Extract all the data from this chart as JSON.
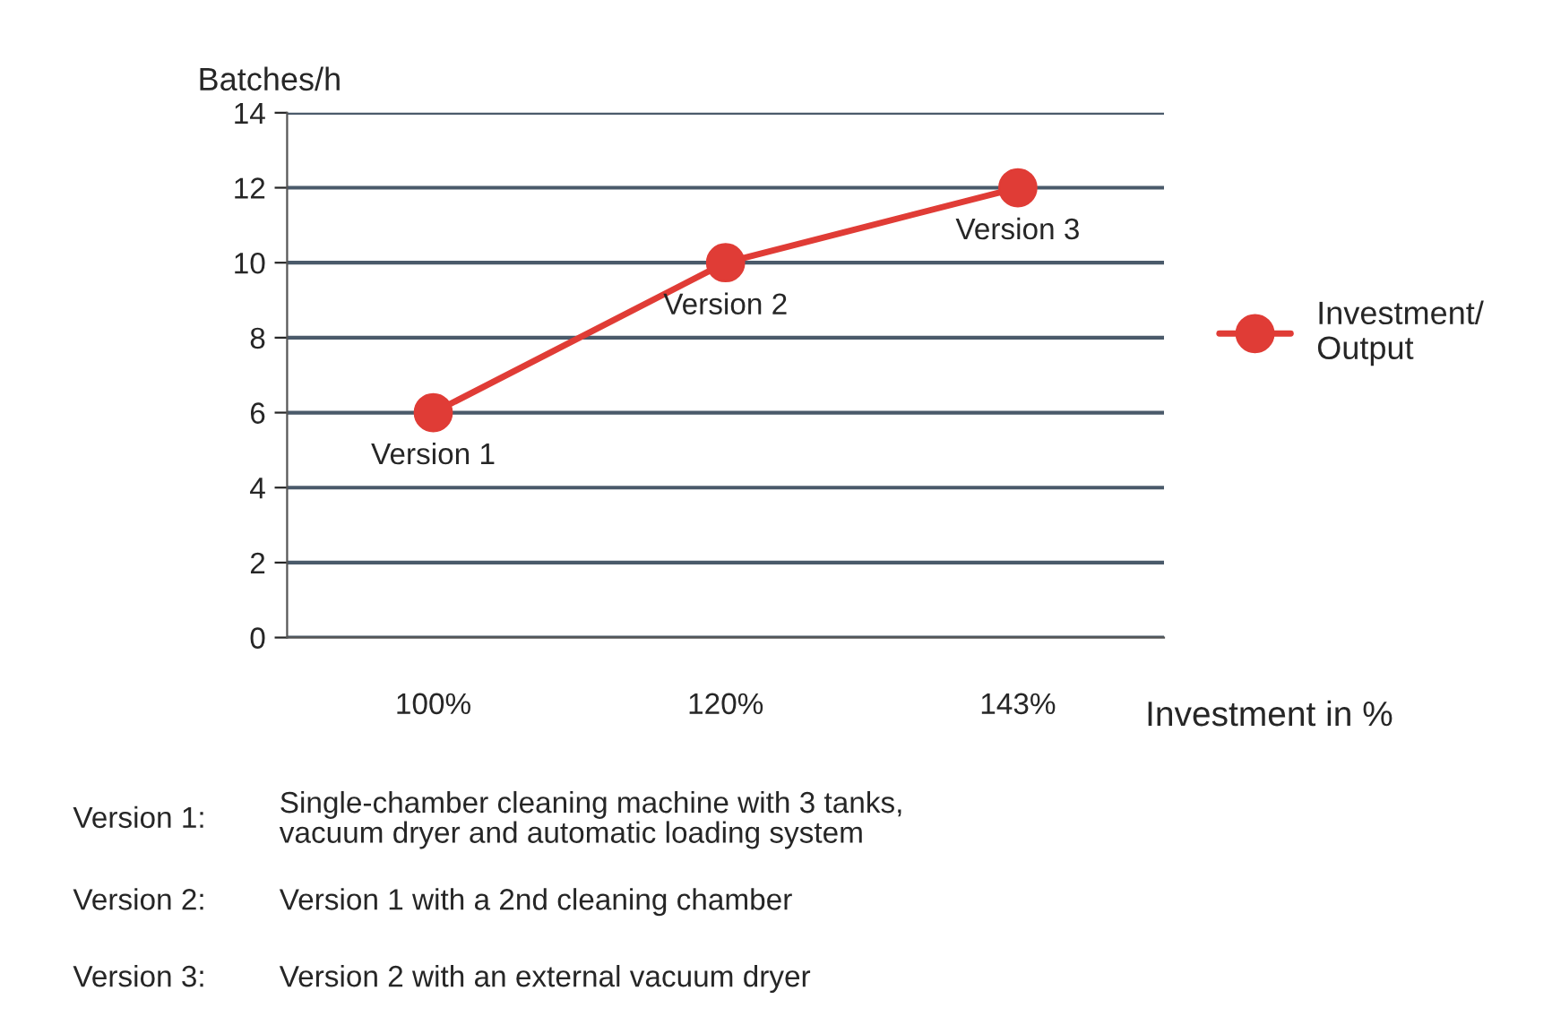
{
  "chart_data": {
    "type": "line",
    "categories": [
      "100%",
      "120%",
      "143%"
    ],
    "series": [
      {
        "name": "Investment/\nOutput",
        "color": "#e03c36",
        "values": [
          6,
          10,
          12
        ]
      }
    ],
    "ylabel": "Batches/h",
    "xlabel": "Investment in %",
    "ylim": [
      0,
      14
    ],
    "yticks": [
      0,
      2,
      4,
      6,
      8,
      10,
      12,
      14
    ],
    "grid": "y",
    "legend": "right",
    "marker": "circle",
    "line_style": "solid",
    "annotations": [
      {
        "text": "Version 1",
        "x": "100%",
        "y": 6
      },
      {
        "text": "Version 2",
        "x": "120%",
        "y": 10
      },
      {
        "text": "Version 3",
        "x": "143%",
        "y": 12
      },
      "Version 1:",
      "Single-chamber cleaning machine with 3 tanks,\nvacuum dryer and automatic loading system",
      "Version 2:",
      "Version 1 with a 2nd cleaning chamber",
      "Version 3:",
      "Version 2 with an external vacuum dryer"
    ]
  }
}
